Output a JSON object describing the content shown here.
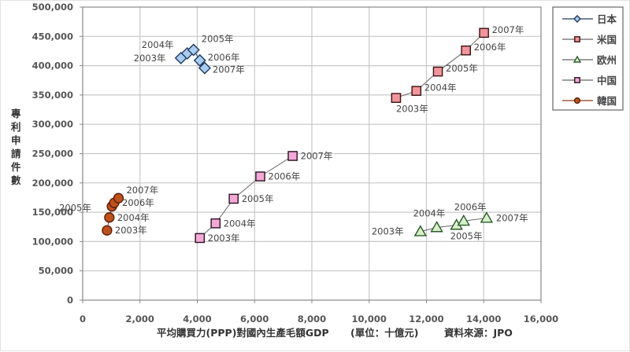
{
  "chart_data": {
    "type": "scatter",
    "title": "",
    "xlabel": "平均購買力(PPP)對國內生產毛額GDP",
    "xlabel_unit": "(單位：十億元)",
    "source": "資料來源：JPO",
    "ylabel": "專利申請件數",
    "xlim": [
      0,
      16000
    ],
    "ylim": [
      0,
      500000
    ],
    "x_ticks": [
      "0",
      "2,000",
      "4,000",
      "6,000",
      "8,000",
      "10,000",
      "12,000",
      "14,000",
      "16,000"
    ],
    "y_ticks": [
      "0",
      "50,000",
      "100,000",
      "150,000",
      "200,000",
      "250,000",
      "300,000",
      "350,000",
      "400,000",
      "450,000",
      "500,000"
    ],
    "grid": true,
    "legend_position": "right",
    "series": [
      {
        "name": "日本",
        "marker": "diamond",
        "fill": "#a9cdf2",
        "stroke": "#1f3a5a",
        "line": "#1f3a5a",
        "points": [
          {
            "label": "2003年",
            "x": 3430,
            "y": 413000
          },
          {
            "label": "2004年",
            "x": 3650,
            "y": 421000
          },
          {
            "label": "2005年",
            "x": 3870,
            "y": 427000
          },
          {
            "label": "2006年",
            "x": 4090,
            "y": 409000
          },
          {
            "label": "2007年",
            "x": 4260,
            "y": 396000
          }
        ]
      },
      {
        "name": "米国",
        "marker": "square",
        "fill": "#f2959a",
        "stroke": "#3a1010",
        "line": "#666666",
        "points": [
          {
            "label": "2003年",
            "x": 10940,
            "y": 345000
          },
          {
            "label": "2004年",
            "x": 11650,
            "y": 357000
          },
          {
            "label": "2005年",
            "x": 12400,
            "y": 390000
          },
          {
            "label": "2006年",
            "x": 13380,
            "y": 426000
          },
          {
            "label": "2007年",
            "x": 14010,
            "y": 456000
          }
        ]
      },
      {
        "name": "欧州",
        "marker": "triangle",
        "fill": "#d8f0c8",
        "stroke": "#2a5a2a",
        "line": "#666666",
        "points": [
          {
            "label": "2003年",
            "x": 11790,
            "y": 117000
          },
          {
            "label": "2004年",
            "x": 12360,
            "y": 124000
          },
          {
            "label": "2005年",
            "x": 13050,
            "y": 128000
          },
          {
            "label": "2006年",
            "x": 13300,
            "y": 135000
          },
          {
            "label": "2007年",
            "x": 14100,
            "y": 140000
          }
        ]
      },
      {
        "name": "中国",
        "marker": "square",
        "fill": "#f5a8d8",
        "stroke": "#2a1020",
        "line": "#666666",
        "points": [
          {
            "label": "2003年",
            "x": 4090,
            "y": 106000
          },
          {
            "label": "2004年",
            "x": 4640,
            "y": 131000
          },
          {
            "label": "2005年",
            "x": 5270,
            "y": 173000
          },
          {
            "label": "2006年",
            "x": 6200,
            "y": 211000
          },
          {
            "label": "2007年",
            "x": 7330,
            "y": 246000
          }
        ]
      },
      {
        "name": "韓国",
        "marker": "circle",
        "fill": "#c0501a",
        "stroke": "#5a2008",
        "line": "#8a3a10",
        "points": [
          {
            "label": "2003年",
            "x": 850,
            "y": 119000
          },
          {
            "label": "2004年",
            "x": 930,
            "y": 141000
          },
          {
            "label": "2005年",
            "x": 1020,
            "y": 160000
          },
          {
            "label": "2006年",
            "x": 1100,
            "y": 166000
          },
          {
            "label": "2007年",
            "x": 1250,
            "y": 174000
          }
        ]
      }
    ],
    "label_offsets": {
      "日本": [
        [
          -60,
          4
        ],
        [
          -58,
          -7
        ],
        [
          10,
          -10
        ],
        [
          10,
          0
        ],
        [
          10,
          6
        ]
      ],
      "米国": [
        [
          0,
          18
        ],
        [
          10,
          0
        ],
        [
          10,
          0
        ],
        [
          10,
          0
        ],
        [
          10,
          0
        ]
      ],
      "欧州": [
        [
          -62,
          4
        ],
        [
          -30,
          -14
        ],
        [
          -8,
          18
        ],
        [
          -12,
          -14
        ],
        [
          12,
          4
        ]
      ],
      "中国": [
        [
          10,
          4
        ],
        [
          10,
          4
        ],
        [
          10,
          4
        ],
        [
          10,
          4
        ],
        [
          10,
          4
        ]
      ],
      "韓国": [
        [
          10,
          4
        ],
        [
          10,
          4
        ],
        [
          -67,
          6
        ],
        [
          10,
          4
        ],
        [
          10,
          -6
        ]
      ]
    }
  }
}
